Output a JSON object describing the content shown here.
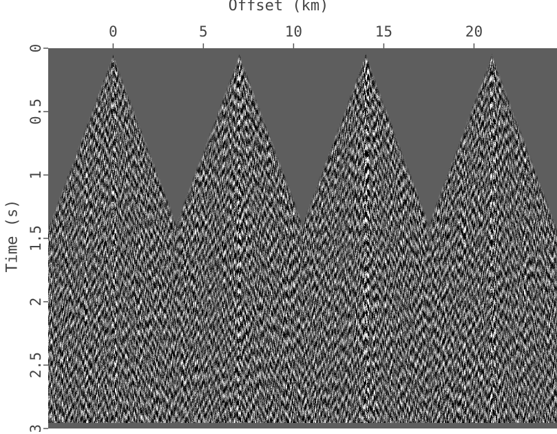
{
  "chart_data": {
    "type": "heatmap",
    "title": "",
    "xlabel": "Offset (km)",
    "ylabel": "Time (s)",
    "x_ticks": [
      "0",
      "5",
      "10",
      "15",
      "20"
    ],
    "x_tick_values": [
      0,
      5,
      10,
      15,
      20
    ],
    "y_ticks": [
      "0",
      "0.5",
      "1",
      "1.5",
      "2",
      "2.5",
      "3"
    ],
    "y_tick_values": [
      0,
      0.5,
      1,
      1.5,
      2,
      2.5,
      3
    ],
    "xlim": [
      -3.6,
      24.6
    ],
    "ylim": [
      0,
      3
    ],
    "y_inverted": true,
    "x_axis_position": "top",
    "colormap": "grayscale",
    "background_color": "#5e5e5e",
    "shot_positions_km": [
      0,
      7,
      14,
      21
    ],
    "apex_time_s": 0.04,
    "wavefront_slope_s_per_km": 0.38,
    "grid": false,
    "legend": "none"
  }
}
